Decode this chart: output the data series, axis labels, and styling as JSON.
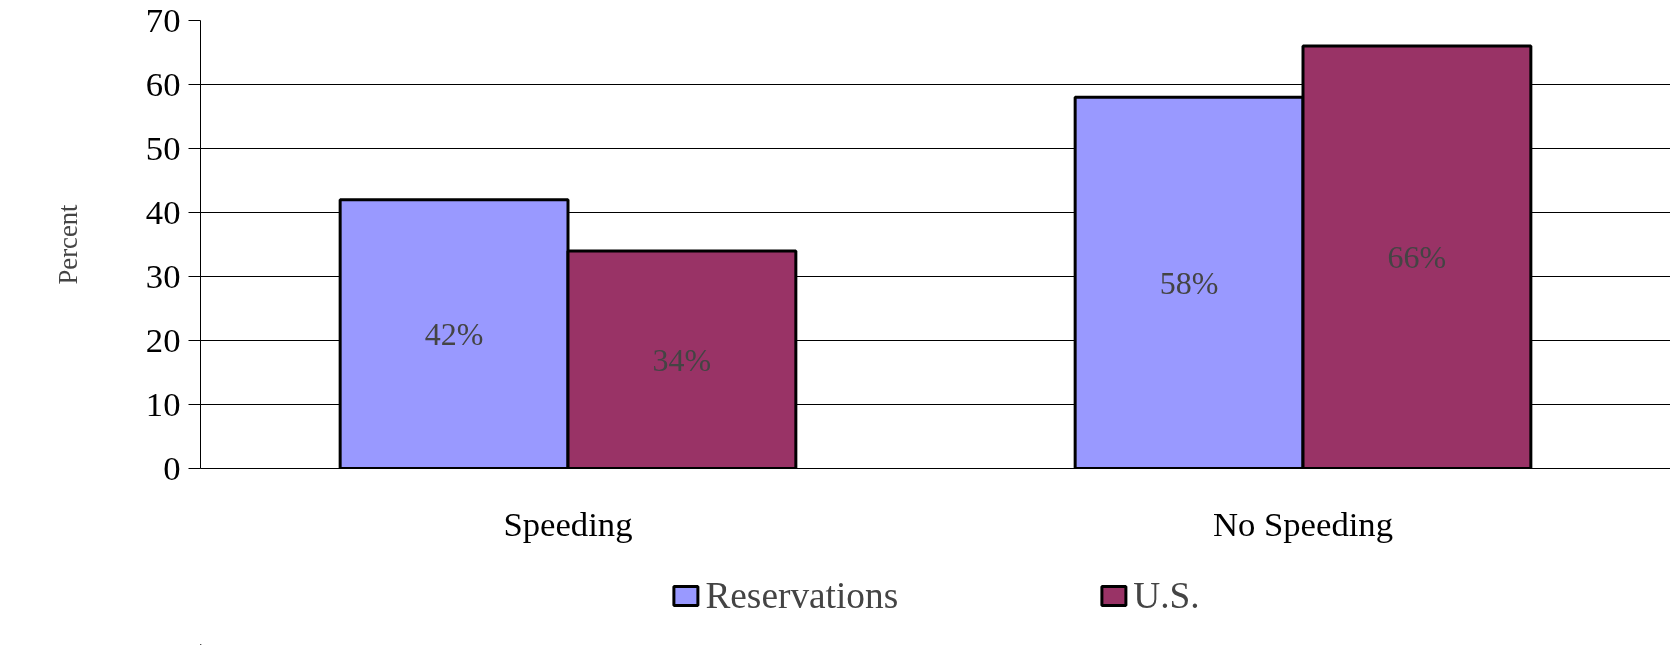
{
  "chart_data": {
    "type": "bar",
    "ylabel": "Percent",
    "categories": [
      "Speeding",
      "No Speeding"
    ],
    "series": [
      {
        "name": "Reservations",
        "color": "#9999ff",
        "values": [
          42,
          58
        ],
        "value_labels": [
          "42%",
          "58%"
        ]
      },
      {
        "name": "U.S.",
        "color": "#993366",
        "values": [
          34,
          66
        ],
        "value_labels": [
          "34%",
          "66%"
        ]
      }
    ],
    "ylim": [
      0,
      70
    ],
    "yticks": [
      0,
      10,
      20,
      30,
      40,
      50,
      60,
      70
    ],
    "grid": "y",
    "legend": "bottom"
  }
}
